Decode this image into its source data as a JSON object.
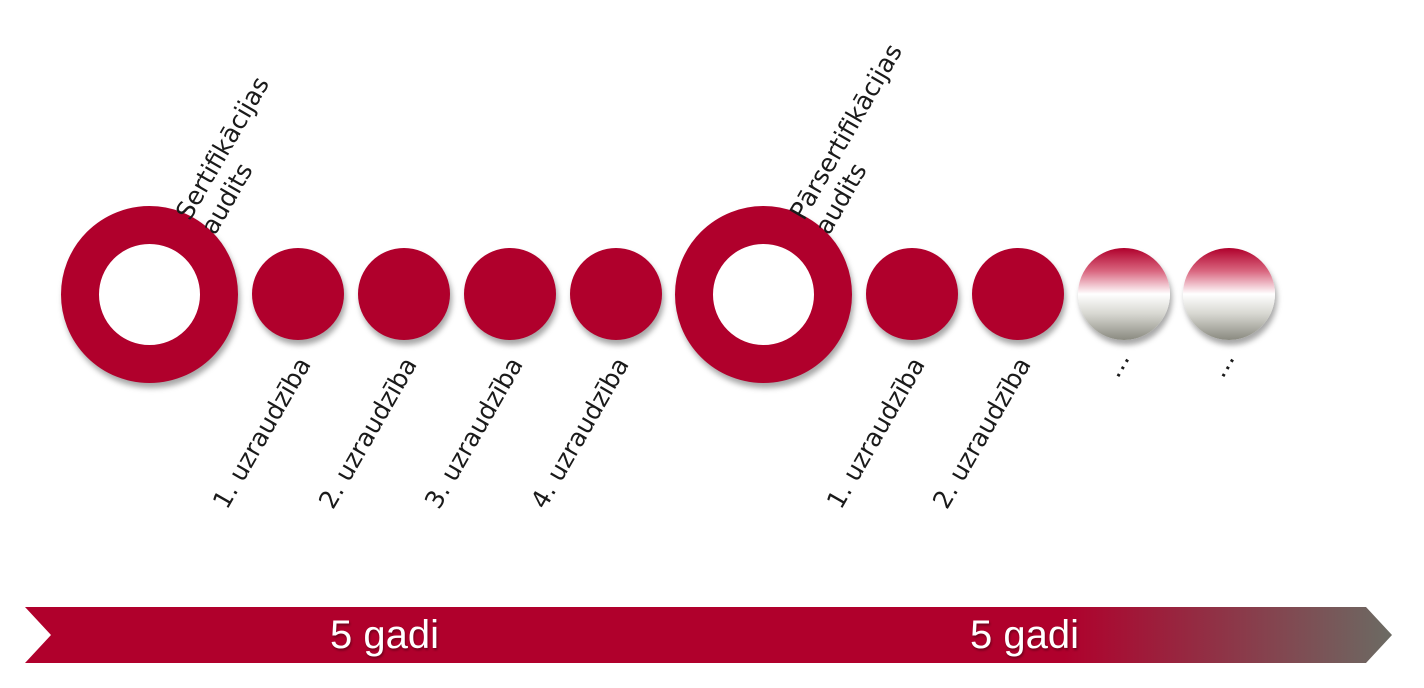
{
  "top_labels": {
    "certification": [
      "Sertifikācijas",
      "audits"
    ],
    "recertification": [
      "Pārsertifikācijas",
      "audits"
    ]
  },
  "bottom_labels": {
    "s1": "1. uzraudzība",
    "s2": "2. uzraudzība",
    "s3": "3. uzraudzība",
    "s4": "4. uzraudzība",
    "r1": "1. uzraudzība",
    "r2": "2. uzraudzība",
    "e1": "…",
    "e2": "…"
  },
  "timeline": {
    "period1": "5 gadi",
    "period2": "5 gadi"
  },
  "colors": {
    "primary": "#b0002c",
    "fade_end": "#6b6b63"
  }
}
